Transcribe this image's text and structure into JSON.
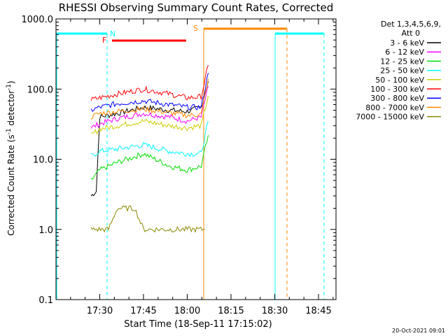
{
  "chart_data": {
    "type": "line",
    "title": "RHESSI Observing Summary Count Rates, Corrected",
    "xlabel": "Start Time (18-Sep-11 17:15:02)",
    "ylabel_main": "Corrected Count Rate (s",
    "ylabel_sup1": "-1",
    "ylabel_mid": " detector",
    "ylabel_sup2": "-1",
    "ylabel_end": ")",
    "y_scale": "log",
    "ylim": [
      0.1,
      1000
    ],
    "xlim_minutes": [
      17.25,
      18.85
    ],
    "x_ticks": [
      {
        "label": "17:30",
        "t": 17.5
      },
      {
        "label": "17:45",
        "t": 17.75
      },
      {
        "label": "18:00",
        "t": 18.0
      },
      {
        "label": "18:15",
        "t": 18.25
      },
      {
        "label": "18:30",
        "t": 18.5
      },
      {
        "label": "18:45",
        "t": 18.75
      }
    ],
    "y_ticks": [
      {
        "label": "1000.0",
        "v": 1000
      },
      {
        "label": "100.0",
        "v": 100
      },
      {
        "label": "10.0",
        "v": 10
      },
      {
        "label": "1.0",
        "v": 1
      },
      {
        "label": "0.1",
        "v": 0.1
      }
    ],
    "legend_title": "Det 1,3,4,5,6,9,",
    "legend_subtitle": "Att 0",
    "legend_placement": "right",
    "series": [
      {
        "name": "3 - 6 keV",
        "color": "#000000",
        "values": [
          [
            17.45,
            3
          ],
          [
            17.48,
            3.5
          ],
          [
            17.5,
            40
          ],
          [
            17.6,
            45
          ],
          [
            17.75,
            55
          ],
          [
            17.9,
            50
          ],
          [
            18.0,
            48
          ],
          [
            18.08,
            55
          ],
          [
            18.12,
            130
          ]
        ]
      },
      {
        "name": "6 - 12 keV",
        "color": "#ff00ff",
        "values": [
          [
            17.45,
            28
          ],
          [
            17.5,
            32
          ],
          [
            17.6,
            38
          ],
          [
            17.75,
            45
          ],
          [
            17.9,
            40
          ],
          [
            18.0,
            35
          ],
          [
            18.08,
            40
          ],
          [
            18.12,
            110
          ]
        ]
      },
      {
        "name": "12 - 25 keV",
        "color": "#00dd00",
        "values": [
          [
            17.45,
            5
          ],
          [
            17.5,
            7
          ],
          [
            17.6,
            9
          ],
          [
            17.75,
            12
          ],
          [
            17.9,
            8
          ],
          [
            18.0,
            7
          ],
          [
            18.08,
            8
          ],
          [
            18.12,
            22
          ]
        ]
      },
      {
        "name": "25 - 50 keV",
        "color": "#00ffff",
        "values": [
          [
            17.45,
            11
          ],
          [
            17.5,
            13
          ],
          [
            17.6,
            14
          ],
          [
            17.75,
            16
          ],
          [
            17.9,
            13
          ],
          [
            18.0,
            12
          ],
          [
            18.08,
            12
          ],
          [
            18.12,
            35
          ]
        ]
      },
      {
        "name": "50 - 100 keV",
        "color": "#cccc00",
        "values": [
          [
            17.45,
            22
          ],
          [
            17.5,
            27
          ],
          [
            17.6,
            30
          ],
          [
            17.75,
            35
          ],
          [
            17.9,
            30
          ],
          [
            18.0,
            28
          ],
          [
            18.08,
            30
          ],
          [
            18.12,
            80
          ]
        ]
      },
      {
        "name": "100 - 300 keV",
        "color": "#ff0000",
        "values": [
          [
            17.45,
            70
          ],
          [
            17.5,
            75
          ],
          [
            17.6,
            85
          ],
          [
            17.75,
            100
          ],
          [
            17.9,
            85
          ],
          [
            18.0,
            75
          ],
          [
            18.08,
            78
          ],
          [
            18.12,
            220
          ]
        ]
      },
      {
        "name": "300 - 800 keV",
        "color": "#0000ff",
        "values": [
          [
            17.45,
            50
          ],
          [
            17.5,
            55
          ],
          [
            17.6,
            62
          ],
          [
            17.75,
            68
          ],
          [
            17.9,
            60
          ],
          [
            18.0,
            55
          ],
          [
            18.08,
            55
          ],
          [
            18.12,
            170
          ]
        ]
      },
      {
        "name": "800 - 7000 keV",
        "color": "#ff8800",
        "values": [
          [
            17.45,
            40
          ],
          [
            17.5,
            45
          ],
          [
            17.6,
            48
          ],
          [
            17.75,
            52
          ],
          [
            17.9,
            46
          ],
          [
            18.0,
            42
          ],
          [
            18.08,
            44
          ],
          [
            18.12,
            140
          ]
        ]
      },
      {
        "name": "7000 - 15000 keV",
        "color": "#888800",
        "values": [
          [
            17.45,
            1
          ],
          [
            17.55,
            1
          ],
          [
            17.6,
            2
          ],
          [
            17.7,
            2
          ],
          [
            17.75,
            1
          ],
          [
            18.0,
            1
          ],
          [
            18.1,
            1
          ]
        ]
      }
    ],
    "annotations": [
      {
        "text": "N",
        "color": "#00ffff"
      },
      {
        "text": "F",
        "color": "#ff0000"
      },
      {
        "text": "S",
        "color": "#ff8800"
      }
    ],
    "footer_date": "20-Oct-2021 09:01"
  }
}
